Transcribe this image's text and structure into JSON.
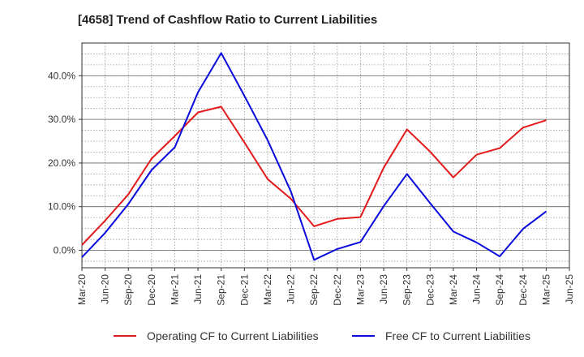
{
  "chart_data": {
    "type": "line",
    "title": "[4658]  Trend of Cashflow Ratio to Current Liabilities",
    "x": [
      "Mar-20",
      "Jun-20",
      "Sep-20",
      "Dec-20",
      "Mar-21",
      "Jun-21",
      "Sep-21",
      "Dec-21",
      "Mar-22",
      "Jun-22",
      "Sep-22",
      "Dec-22",
      "Mar-23",
      "Jun-23",
      "Sep-23",
      "Dec-23",
      "Mar-24",
      "Jun-24",
      "Sep-24",
      "Dec-24",
      "Mar-25"
    ],
    "x_tick_labels": [
      "Mar-20",
      "Jun-20",
      "Sep-20",
      "Dec-20",
      "Mar-21",
      "Jun-21",
      "Sep-21",
      "Dec-21",
      "Mar-22",
      "Jun-22",
      "Sep-22",
      "Dec-22",
      "Mar-23",
      "Jun-23",
      "Sep-23",
      "Dec-23",
      "Mar-24",
      "Jun-24",
      "Sep-24",
      "Dec-24",
      "Mar-25",
      "Jun-25"
    ],
    "series": [
      {
        "name": "Operating CF to Current Liabilities",
        "color": "#e31a1c",
        "values": [
          1.2,
          6.8,
          12.8,
          21.0,
          26.2,
          31.6,
          32.9,
          24.7,
          16.3,
          11.8,
          5.5,
          7.2,
          7.6,
          18.9,
          27.7,
          22.6,
          16.7,
          21.9,
          23.4,
          28.1,
          29.8
        ]
      },
      {
        "name": "Free CF to Current Liabilities",
        "color": "#0a0adc",
        "values": [
          -1.6,
          4.0,
          10.6,
          18.4,
          23.6,
          36.2,
          45.2,
          35.4,
          25.2,
          13.5,
          -2.2,
          0.3,
          1.9,
          10.1,
          17.5,
          10.8,
          4.3,
          1.8,
          -1.4,
          4.9,
          8.9
        ]
      }
    ],
    "y_ticks": [
      0,
      10,
      20,
      30,
      40
    ],
    "y_tick_labels": [
      "0.0%",
      "10.0%",
      "20.0%",
      "30.0%",
      "40.0%"
    ],
    "ylim": [
      -4,
      47.5
    ],
    "xlabel": "",
    "ylabel": "",
    "grid": true,
    "legend_position": "bottom"
  }
}
